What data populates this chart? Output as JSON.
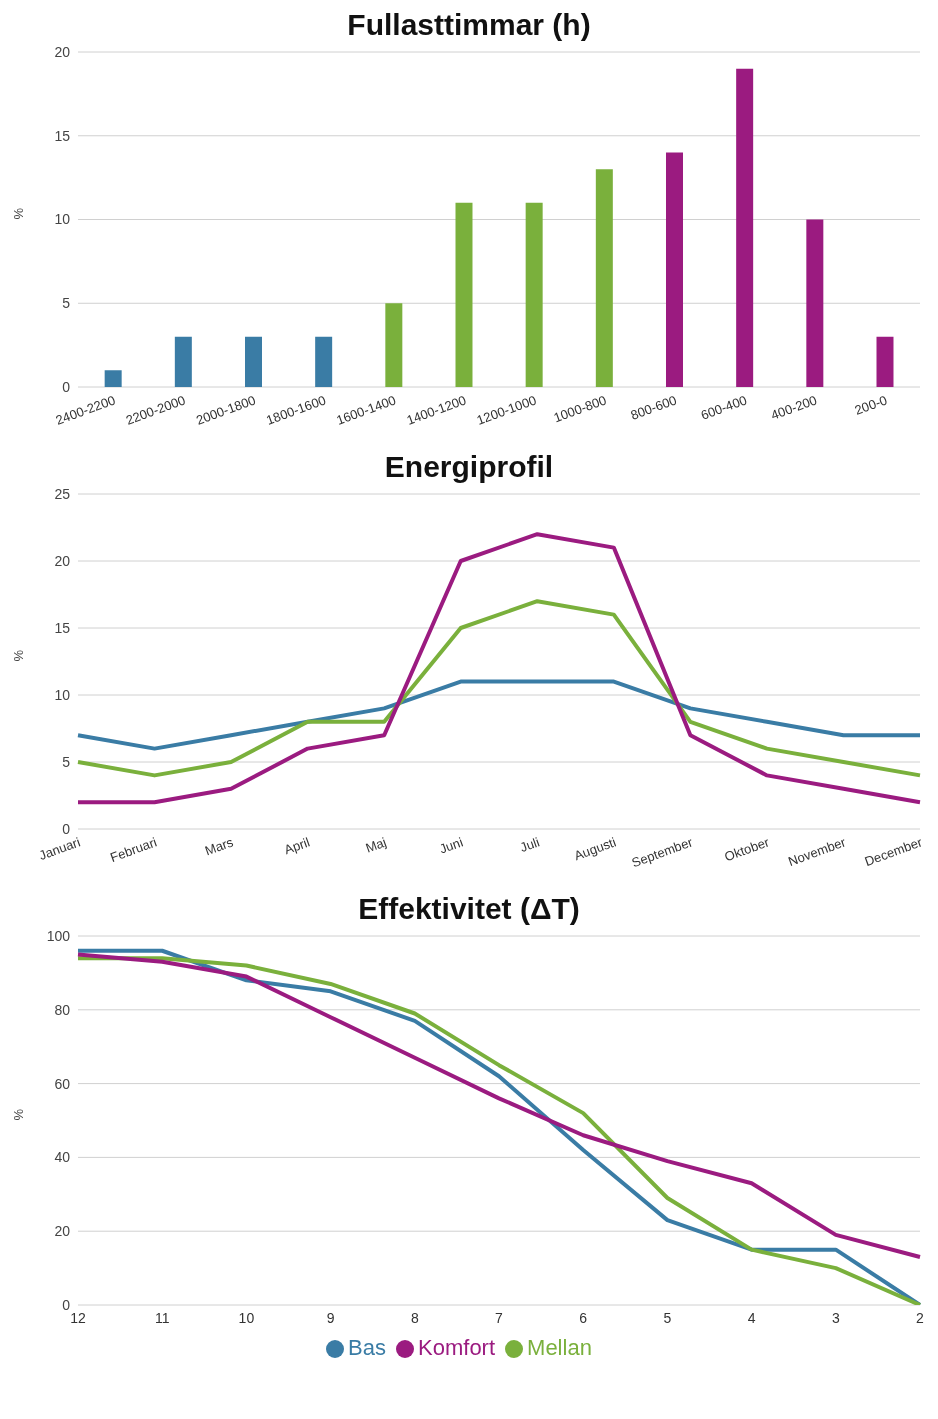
{
  "chart_data": [
    {
      "type": "bar",
      "title": "Fullasttimmar (h)",
      "ylabel": "%",
      "categories": [
        "2400-2200",
        "2200-2000",
        "2000-1800",
        "1800-1600",
        "1600-1400",
        "1400-1200",
        "1200-1000",
        "1000-800",
        "800-600",
        "600-400",
        "400-200",
        "200-0"
      ],
      "values": [
        1,
        3,
        3,
        3,
        5,
        11,
        11,
        13,
        14,
        19,
        10,
        3
      ],
      "colors": [
        "#3a7ca5",
        "#3a7ca5",
        "#3a7ca5",
        "#3a7ca5",
        "#7ab03c",
        "#7ab03c",
        "#7ab03c",
        "#7ab03c",
        "#9b1b80",
        "#9b1b80",
        "#9b1b80",
        "#9b1b80"
      ],
      "ylim": [
        0,
        20
      ],
      "yticks": [
        0,
        5,
        10,
        15,
        20
      ],
      "grid": "y",
      "legend": false
    },
    {
      "type": "line",
      "title": "Energiprofil",
      "ylabel": "%",
      "categories": [
        "Januari",
        "Februari",
        "Mars",
        "April",
        "Maj",
        "Juni",
        "Juli",
        "Augusti",
        "September",
        "Oktober",
        "November",
        "December"
      ],
      "series": [
        {
          "color": "#3a7ca5",
          "values": [
            7,
            6,
            7,
            8,
            9,
            11,
            11,
            11,
            9,
            8,
            7,
            7
          ]
        },
        {
          "color": "#7ab03c",
          "values": [
            5,
            4,
            5,
            8,
            8,
            15,
            17,
            16,
            8,
            6,
            5,
            4
          ]
        },
        {
          "color": "#9b1b80",
          "values": [
            2,
            2,
            3,
            6,
            7,
            20,
            22,
            21,
            7,
            4,
            3,
            2
          ]
        }
      ],
      "ylim": [
        0,
        25
      ],
      "yticks": [
        0,
        5,
        10,
        15,
        20,
        25
      ],
      "grid": "y",
      "legend": false,
      "marker": "none",
      "line_style": "solid"
    },
    {
      "type": "line",
      "title": "Effektivitet (ΔT)",
      "ylabel": "%",
      "categories": [
        "12",
        "11",
        "10",
        "9",
        "8",
        "7",
        "6",
        "5",
        "4",
        "3",
        "2"
      ],
      "series": [
        {
          "name": "Bas",
          "color": "#3a7ca5",
          "values": [
            96,
            96,
            88,
            85,
            77,
            62,
            42,
            23,
            15,
            15,
            0
          ]
        },
        {
          "name": "Mellan",
          "color": "#7ab03c",
          "values": [
            94,
            94,
            92,
            87,
            79,
            65,
            52,
            29,
            15,
            10,
            0
          ]
        },
        {
          "name": "Komfort",
          "color": "#9b1b80",
          "values": [
            95,
            93,
            89,
            78,
            67,
            56,
            46,
            39,
            33,
            19,
            13
          ]
        }
      ],
      "ylim": [
        0,
        100
      ],
      "yticks": [
        0,
        20,
        40,
        60,
        80,
        100
      ],
      "grid": "y",
      "legend": "bottom",
      "marker": "none",
      "line_style": "solid"
    }
  ]
}
